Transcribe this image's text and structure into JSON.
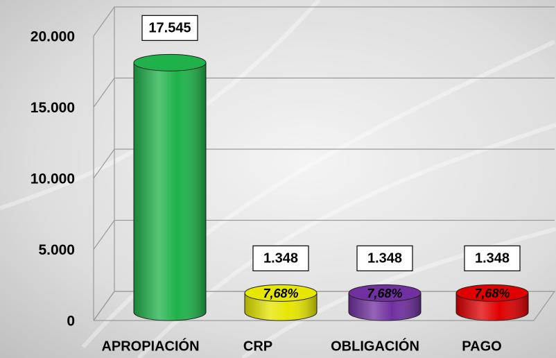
{
  "chart_data": {
    "type": "bar3d",
    "categories": [
      "APROPIACIÓN",
      "CRP",
      "OBLIGACIÓN",
      "PAGO"
    ],
    "values": [
      17545,
      1348,
      1348,
      1348
    ],
    "value_labels": [
      "17.545",
      "1.348",
      "1.348",
      "1.348"
    ],
    "percent_labels": [
      null,
      "7,68%",
      "7,68%",
      "7,68%"
    ],
    "colors": [
      "#1fb24a",
      "#e6e600",
      "#7030a0",
      "#e00000"
    ],
    "ylim": [
      0,
      20000
    ],
    "yticks": [
      0,
      {
        "value": 5000,
        "label": "5.000"
      },
      {
        "value": 10000,
        "label": "10.000"
      },
      {
        "value": 15000,
        "label": "15.000"
      },
      {
        "value": 20000,
        "label": "20.000"
      }
    ],
    "grid": true
  }
}
